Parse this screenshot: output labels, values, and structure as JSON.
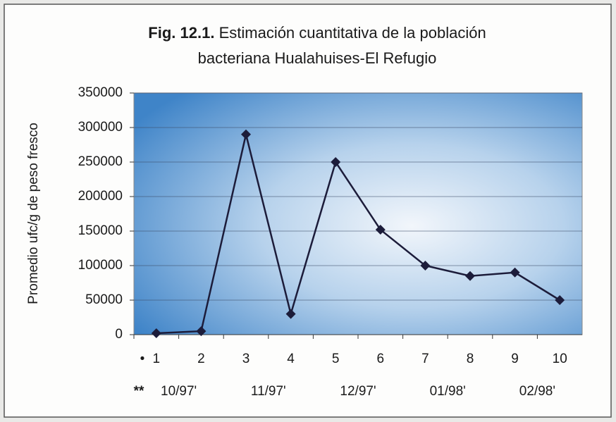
{
  "chart_data": {
    "type": "line",
    "title_label": "Fig. 12.1.",
    "title": [
      "Estimación cuantitativa de la población",
      "bacteriana Hualahuises-El Refugio"
    ],
    "ylabel": "Promedio ufc/g de peso fresco",
    "category_marker": "•",
    "categories": [
      "1",
      "2",
      "3",
      "4",
      "5",
      "6",
      "7",
      "8",
      "9",
      "10"
    ],
    "period_marker": "**",
    "periods": [
      "10/97'",
      "11/97'",
      "12/97'",
      "01/98'",
      "02/98'"
    ],
    "series": [
      {
        "name": "Promedio",
        "color": "#1c1c3a",
        "values": [
          2000,
          5000,
          290000,
          30000,
          250000,
          152000,
          100000,
          85000,
          90000,
          50000
        ]
      }
    ],
    "ylim": [
      0,
      350000
    ],
    "yticks": [
      0,
      50000,
      100000,
      150000,
      200000,
      250000,
      300000,
      350000
    ],
    "grid": true
  }
}
